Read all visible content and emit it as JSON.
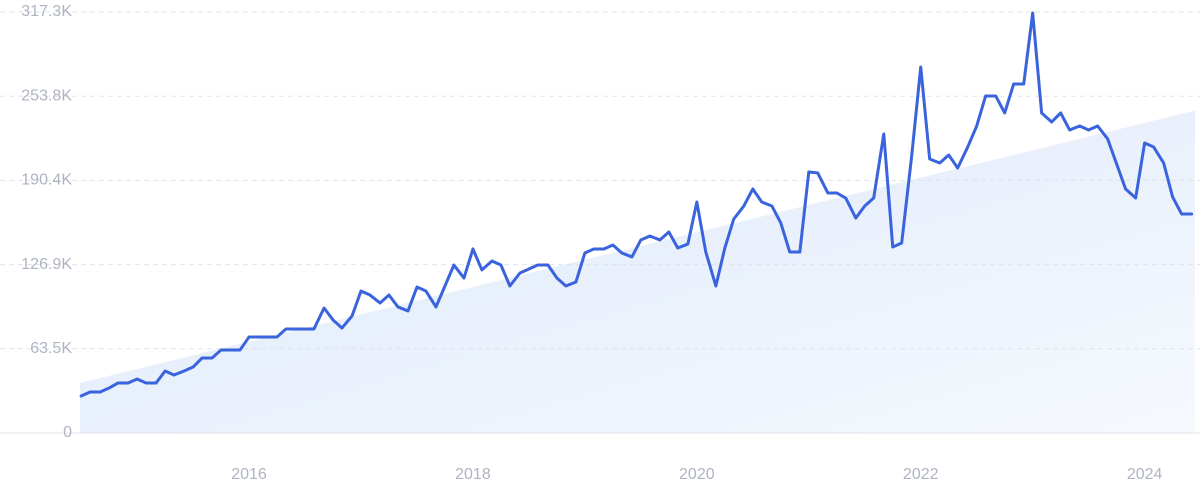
{
  "chart_data": {
    "type": "line",
    "x": [
      2014.5,
      2014.58,
      2014.67,
      2014.75,
      2014.83,
      2014.92,
      2015,
      2015.08,
      2015.17,
      2015.25,
      2015.33,
      2015.42,
      2015.5,
      2015.58,
      2015.67,
      2015.75,
      2015.83,
      2015.92,
      2016,
      2016.08,
      2016.17,
      2016.25,
      2016.33,
      2016.42,
      2016.5,
      2016.58,
      2016.67,
      2016.75,
      2016.83,
      2016.92,
      2017,
      2017.08,
      2017.17,
      2017.25,
      2017.33,
      2017.42,
      2017.5,
      2017.58,
      2017.67,
      2017.75,
      2017.83,
      2017.92,
      2018,
      2018.08,
      2018.17,
      2018.25,
      2018.33,
      2018.42,
      2018.5,
      2018.58,
      2018.67,
      2018.75,
      2018.83,
      2018.92,
      2019,
      2019.08,
      2019.17,
      2019.25,
      2019.33,
      2019.42,
      2019.5,
      2019.58,
      2019.67,
      2019.75,
      2019.83,
      2019.92,
      2020,
      2020.08,
      2020.17,
      2020.25,
      2020.33,
      2020.42,
      2020.5,
      2020.58,
      2020.67,
      2020.75,
      2020.83,
      2020.92,
      2021,
      2021.08,
      2021.17,
      2021.25,
      2021.33,
      2021.42,
      2021.5,
      2021.58,
      2021.67,
      2021.75,
      2021.83,
      2021.92,
      2022,
      2022.08,
      2022.17,
      2022.25,
      2022.33,
      2022.42,
      2022.5,
      2022.58,
      2022.67,
      2022.75,
      2022.83,
      2022.92,
      2023,
      2023.08,
      2023.17,
      2023.25,
      2023.33,
      2023.42,
      2023.5,
      2023.58,
      2023.67,
      2023.75,
      2023.83,
      2023.92,
      2024,
      2024.08,
      2024.17,
      2024.25,
      2024.33,
      2024.42
    ],
    "series": [
      {
        "color": "#3a63de",
        "values": [
          27900,
          30900,
          30900,
          33900,
          37700,
          37700,
          40700,
          37700,
          37700,
          46700,
          43700,
          46700,
          49700,
          56500,
          56500,
          62600,
          62600,
          62600,
          72400,
          72400,
          72400,
          72400,
          78400,
          78400,
          78400,
          78400,
          94200,
          85200,
          79100,
          88200,
          107000,
          104000,
          98000,
          104000,
          95000,
          92000,
          110000,
          107000,
          95000,
          110800,
          126600,
          116800,
          138700,
          122900,
          129600,
          126600,
          110800,
          120600,
          123600,
          126600,
          126600,
          116800,
          110800,
          113800,
          135700,
          138700,
          138700,
          141700,
          135700,
          132700,
          145500,
          148500,
          145500,
          151500,
          139400,
          142400,
          174100,
          136400,
          110800,
          139400,
          161300,
          171100,
          183900,
          174100,
          171100,
          158300,
          136400,
          136400,
          196700,
          196000,
          180900,
          180900,
          177100,
          162000,
          171100,
          177100,
          225400,
          140200,
          143200,
          209500,
          275800,
          206500,
          203500,
          209500,
          199700,
          215600,
          231400,
          254000,
          254000,
          241200,
          263000,
          263000,
          316600,
          241200,
          234400,
          241200,
          228400,
          231400,
          228400,
          231400,
          221600,
          202700,
          183900,
          177100,
          218600,
          215600,
          203500,
          177900,
          165100,
          165100
        ]
      }
    ],
    "trend": {
      "x": [
        2014.49,
        2024.45
      ],
      "values": [
        37700,
        243000
      ],
      "color": "#dce8fa"
    },
    "xlim": [
      2014.49,
      2024.45
    ],
    "xticks": [
      2016,
      2018,
      2020,
      2022,
      2024
    ],
    "ylim": [
      0,
      317300
    ],
    "yticks": [
      0,
      {
        "value": 63500,
        "label": "63.5K"
      },
      {
        "value": 126900,
        "label": "126.9K"
      },
      {
        "value": 190400,
        "label": "190.4K"
      },
      {
        "value": 253800,
        "label": "253.8K"
      },
      {
        "value": 317300,
        "label": "317.3K"
      }
    ],
    "grid": true
  }
}
